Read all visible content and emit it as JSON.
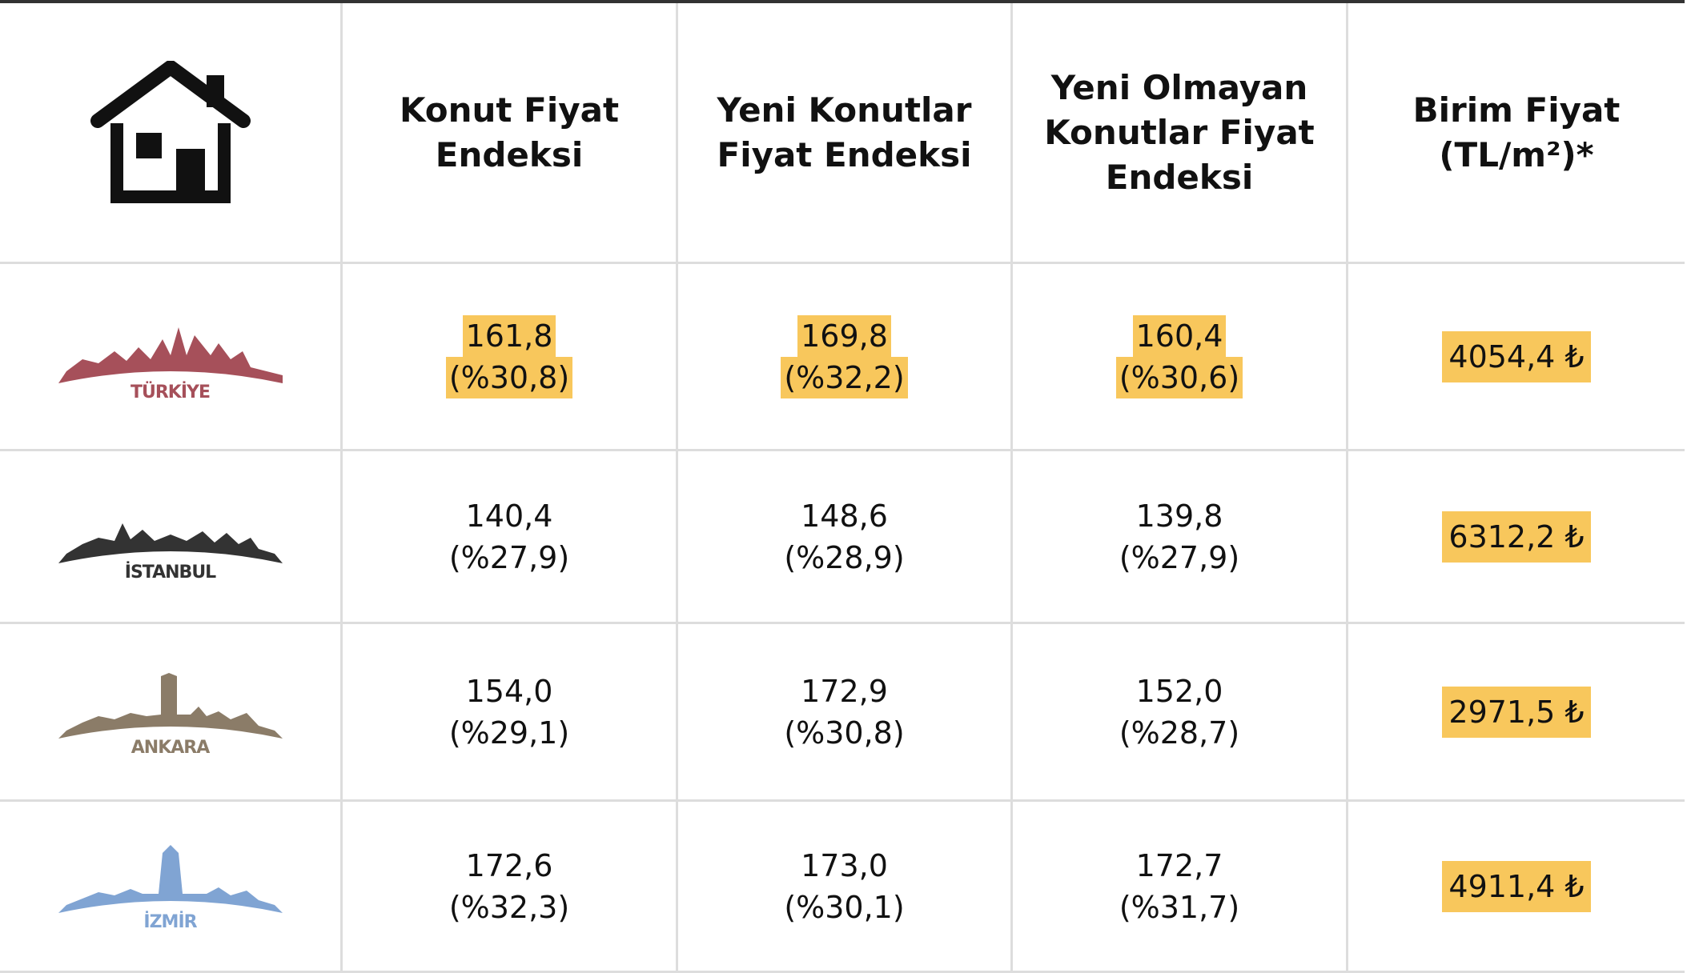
{
  "header": {
    "columns": [
      "Konut Fiyat Endeksi",
      "Yeni Konutlar Fiyat Endeksi",
      "Yeni Olmayan Konutlar Fiyat Endeksi",
      "Birim Fiyat (TL/m²)*"
    ]
  },
  "rows": [
    {
      "label": "TÜRKİYE",
      "cells": [
        {
          "value": "161,8",
          "change": "(%30,8)"
        },
        {
          "value": "169,8",
          "change": "(%32,2)"
        },
        {
          "value": "160,4",
          "change": "(%30,6)"
        }
      ],
      "price": "4054,4 ₺"
    },
    {
      "label": "İSTANBUL",
      "cells": [
        {
          "value": "140,4",
          "change": "(%27,9)"
        },
        {
          "value": "148,6",
          "change": "(%28,9)"
        },
        {
          "value": "139,8",
          "change": "(%27,9)"
        }
      ],
      "price": "6312,2 ₺"
    },
    {
      "label": "ANKARA",
      "cells": [
        {
          "value": "154,0",
          "change": "(%29,1)"
        },
        {
          "value": "172,9",
          "change": "(%30,8)"
        },
        {
          "value": "152,0",
          "change": "(%28,7)"
        }
      ],
      "price": "2971,5 ₺"
    },
    {
      "label": "İZMİR",
      "cells": [
        {
          "value": "172,6",
          "change": "(%32,3)"
        },
        {
          "value": "173,0",
          "change": "(%30,1)"
        },
        {
          "value": "172,7",
          "change": "(%31,7)"
        }
      ],
      "price": "4911,4 ₺"
    }
  ]
}
